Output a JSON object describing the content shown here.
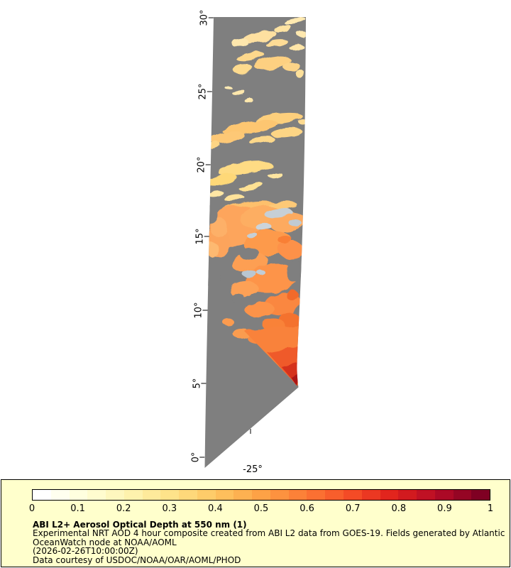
{
  "chart_data": {
    "type": "heatmap",
    "title": "ABI L2+ Aerosol Optical Depth at 550 nm (1)",
    "subtitle": "Experimental NRT AOD 4 hour composite created from ABI L2 data from GOES-19. Fields generated by Atlantic OceanWatch node at NOAA/AOML",
    "timestamp_label": "(2026-02-26T10:00:00Z)",
    "credit": "Data courtesy of USDOC/NOAA/OAR/AOML/PHOD",
    "colorbar": {
      "orientation": "horizontal",
      "position": "bottom",
      "range": [
        0,
        1
      ],
      "ticks": [
        0,
        0.1,
        0.2,
        0.3,
        0.4,
        0.5,
        0.6,
        0.7,
        0.8,
        0.9,
        1
      ]
    },
    "y_axis": {
      "name": "latitude",
      "tick_labels": [
        "30°",
        "25°",
        "20°",
        "15°",
        "10°",
        "5°",
        "0°"
      ],
      "range_deg": [
        0,
        30
      ]
    },
    "x_axis": {
      "name": "longitude",
      "tick_labels": [
        "-25°"
      ]
    },
    "legend_position": "bottom",
    "content_summary": "Slanted geostationary satellite strip over the eastern Atlantic; gray = no data; scattered pale-yellow aerosol patches (AOD 0.1-0.3) between ~17N and 30N; dense orange dust plume (AOD 0.4-0.6) between ~5N and 17N; red maximum (AOD 0.7-0.9) near 5N at the strip's southeastern tip; small blue-gray cloud patches near 14-15N"
  },
  "map": {
    "lat_labels": [
      "30°",
      "25°",
      "20°",
      "15°",
      "10°",
      "5°",
      "0°"
    ],
    "lon_label": "-25°",
    "nodata_color": "#7f7f7f",
    "cloud_color": "#c6cfd6"
  },
  "legend": {
    "background_color": "#ffffcc",
    "title": "ABI L2+ Aerosol Optical Depth at 550 nm (1)",
    "description_line1": "Experimental NRT AOD 4 hour composite created from ABI L2 data from GOES-19. Fields generated by Atlantic",
    "description_line2": "OceanWatch node at NOAA/AOML",
    "timestamp": "(2026-02-26T10:00:00Z)",
    "credit": "Data courtesy of USDOC/NOAA/OAR/AOML/PHOD",
    "colorbar_ticks": [
      "0",
      "0.1",
      "0.2",
      "0.3",
      "0.4",
      "0.5",
      "0.6",
      "0.7",
      "0.8",
      "0.9",
      "1"
    ],
    "colorbar_segments": 25,
    "colorbar_colors": [
      "#ffffff",
      "#ffffd9",
      "#fef3b0",
      "#fee186",
      "#fec561",
      "#fda246",
      "#fc7b35",
      "#f64f27",
      "#e0211c",
      "#b50b26",
      "#7f0023"
    ]
  }
}
